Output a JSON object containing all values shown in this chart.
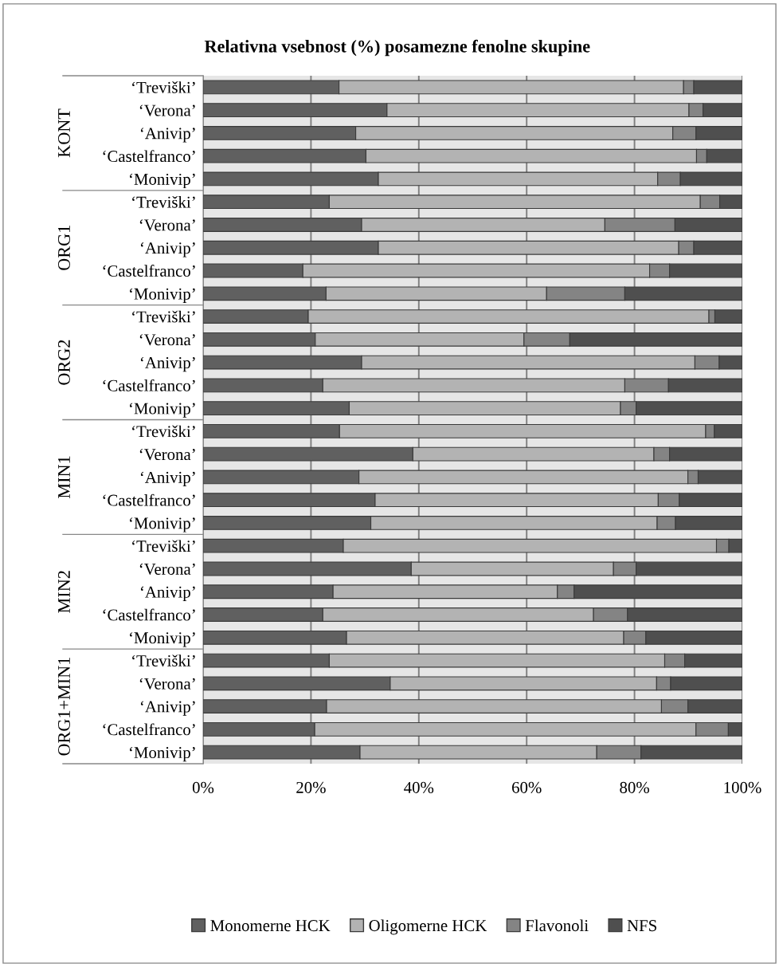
{
  "chart_data": {
    "type": "bar",
    "orientation": "horizontal",
    "stacked": true,
    "title": "Relativna vsebnost (%) posamezne fenolne skupine",
    "categories": [
      "‘Treviški’",
      "‘Verona’",
      "‘Anivip’",
      "‘Castelfranco’",
      "‘Monivip’",
      "‘Treviški’",
      "‘Verona’",
      "‘Anivip’",
      "‘Castelfranco’",
      "‘Monivip’",
      "‘Treviški’",
      "‘Verona’",
      "‘Anivip’",
      "‘Castelfranco’",
      "‘Monivip’",
      "‘Treviški’",
      "‘Verona’",
      "‘Anivip’",
      "‘Castelfranco’",
      "‘Monivip’",
      "‘Treviški’",
      "‘Verona’",
      "‘Anivip’",
      "‘Castelfranco’",
      "‘Monivip’",
      "‘Treviški’",
      "‘Verona’",
      "‘Anivip’",
      "‘Castelfranco’",
      "‘Monivip’"
    ],
    "annotations": [
      "KONT",
      "ORG1",
      "ORG2",
      "MIN1",
      "MIN2",
      "ORG1+MIN1"
    ],
    "series": [
      {
        "name": "Monomerne HCK",
        "color": "#606060",
        "values": [
          25.2,
          34.1,
          28.3,
          30.2,
          32.5,
          23.4,
          29.4,
          32.5,
          18.5,
          22.8,
          19.5,
          20.8,
          29.4,
          22.2,
          27.1,
          25.3,
          38.9,
          28.9,
          31.9,
          31.1,
          26.0,
          38.6,
          24.1,
          22.2,
          26.6,
          23.4,
          34.7,
          22.9,
          20.7,
          29.1
        ]
      },
      {
        "name": "Oligomerne HCK",
        "color": "#b3b3b3",
        "values": [
          63.9,
          56.0,
          58.8,
          61.3,
          51.8,
          68.8,
          45.1,
          55.7,
          64.3,
          40.9,
          74.3,
          38.7,
          61.8,
          56.0,
          50.3,
          67.9,
          44.7,
          61.0,
          52.5,
          53.1,
          69.2,
          37.5,
          41.6,
          50.2,
          51.4,
          62.2,
          49.4,
          62.1,
          70.7,
          43.9
        ]
      },
      {
        "name": "Flavonoli",
        "color": "#848484",
        "values": [
          1.9,
          2.6,
          4.3,
          1.9,
          4.2,
          3.6,
          13.0,
          2.8,
          3.7,
          14.5,
          1.1,
          8.5,
          4.5,
          8.1,
          2.9,
          1.6,
          2.9,
          1.9,
          3.9,
          3.4,
          2.3,
          4.2,
          3.1,
          6.3,
          4.1,
          3.7,
          2.6,
          4.9,
          6.0,
          8.2
        ]
      },
      {
        "name": "NFS",
        "color": "#4f4f4f",
        "values": [
          9.0,
          7.3,
          8.6,
          6.6,
          11.5,
          4.2,
          12.5,
          9.0,
          13.5,
          21.8,
          5.1,
          32.0,
          4.3,
          13.7,
          19.7,
          5.2,
          13.5,
          8.2,
          11.7,
          12.4,
          2.5,
          19.7,
          31.2,
          21.3,
          17.9,
          10.7,
          13.3,
          10.1,
          2.6,
          18.8
        ]
      }
    ],
    "xlim": [
      0,
      100
    ],
    "xticks": [
      {
        "value": 0,
        "label": "0%"
      },
      {
        "value": 20,
        "label": "20%"
      },
      {
        "value": 40,
        "label": "40%"
      },
      {
        "value": 60,
        "label": "60%"
      },
      {
        "value": 80,
        "label": "80%"
      },
      {
        "value": 100,
        "label": "100%"
      }
    ],
    "grid": "x",
    "legend": "bottom"
  }
}
